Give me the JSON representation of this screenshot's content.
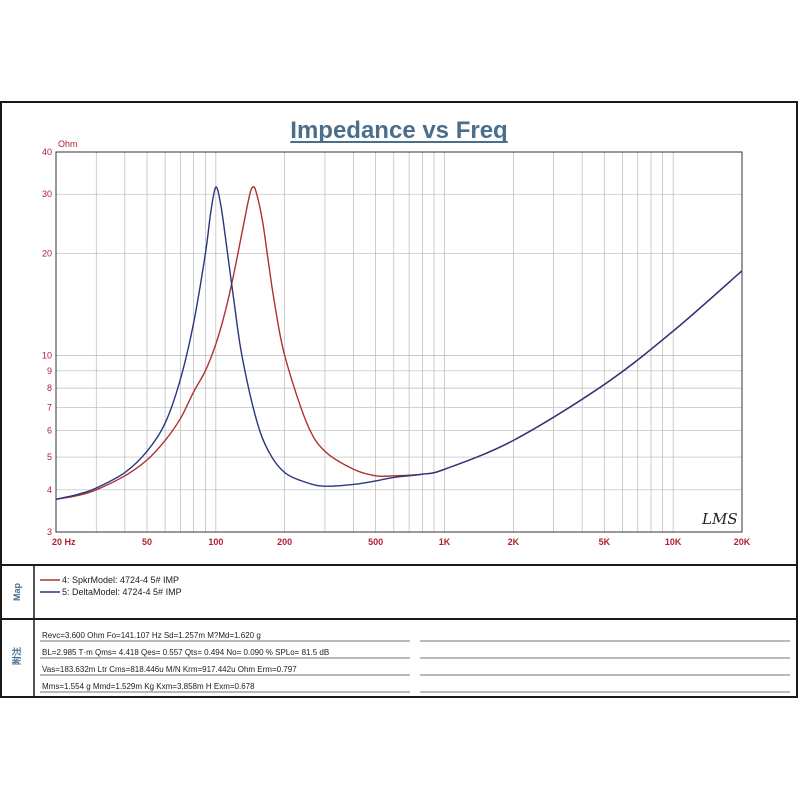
{
  "chart_data": {
    "type": "line",
    "title": "Impedance vs Freq",
    "ylabel": "Ohm",
    "xlabel": "",
    "x_scale": "log",
    "y_scale": "log",
    "xlim": [
      20,
      20000
    ],
    "ylim": [
      3,
      40
    ],
    "grid": true,
    "x_ticks": [
      {
        "value": 20,
        "label": "20  Hz"
      },
      {
        "value": 50,
        "label": "50"
      },
      {
        "value": 100,
        "label": "100"
      },
      {
        "value": 200,
        "label": "200"
      },
      {
        "value": 500,
        "label": "500"
      },
      {
        "value": 1000,
        "label": "1K"
      },
      {
        "value": 2000,
        "label": "2K"
      },
      {
        "value": 5000,
        "label": "5K"
      },
      {
        "value": 10000,
        "label": "10K"
      },
      {
        "value": 20000,
        "label": "20K"
      }
    ],
    "y_ticks": [
      {
        "value": 3,
        "label": "3"
      },
      {
        "value": 4,
        "label": "4"
      },
      {
        "value": 5,
        "label": "5"
      },
      {
        "value": 6,
        "label": "6"
      },
      {
        "value": 7,
        "label": "7"
      },
      {
        "value": 8,
        "label": "8"
      },
      {
        "value": 9,
        "label": "9"
      },
      {
        "value": 10,
        "label": "10"
      },
      {
        "value": 20,
        "label": "20"
      },
      {
        "value": 30,
        "label": "30"
      },
      {
        "value": 40,
        "label": "40"
      }
    ],
    "series": [
      {
        "name": "4: SpkrModel: 4724-4 5#  IMP",
        "color": "#b03030",
        "x": [
          20,
          25,
          30,
          40,
          50,
          60,
          70,
          80,
          90,
          100,
          110,
          120,
          130,
          140,
          145,
          150,
          160,
          170,
          180,
          200,
          250,
          300,
          400,
          500,
          600,
          800,
          1000,
          2000,
          5000,
          10000,
          20000
        ],
        "y": [
          3.75,
          3.85,
          4.0,
          4.4,
          4.9,
          5.6,
          6.5,
          7.8,
          9.0,
          10.8,
          13.5,
          17.5,
          23.0,
          29.5,
          31.5,
          30.5,
          25.0,
          18.8,
          14.5,
          10.0,
          6.3,
          5.2,
          4.6,
          4.4,
          4.4,
          4.45,
          4.6,
          5.6,
          8.2,
          11.8,
          17.8
        ]
      },
      {
        "name": "5: DeltaModel: 4724-4 5#  IMP",
        "color": "#2a3680",
        "x": [
          20,
          25,
          30,
          40,
          50,
          60,
          70,
          80,
          90,
          95,
          100,
          105,
          110,
          120,
          130,
          150,
          170,
          200,
          250,
          300,
          400,
          500,
          600,
          800,
          1000,
          2000,
          5000,
          10000,
          20000
        ],
        "y": [
          3.75,
          3.88,
          4.05,
          4.5,
          5.2,
          6.3,
          8.5,
          12.5,
          20.0,
          26.5,
          31.5,
          28.0,
          22.5,
          14.5,
          10.0,
          6.5,
          5.2,
          4.5,
          4.2,
          4.1,
          4.15,
          4.25,
          4.35,
          4.45,
          4.6,
          5.6,
          8.2,
          11.8,
          17.8
        ]
      }
    ]
  },
  "side_labels": {
    "map": "Map",
    "notes": "附注"
  },
  "watermark": "LMS",
  "parameters": [
    "Revc=3.600 Ohm  Fo=141.107 Hz  Sd=1.257m M?Md=1.620 g",
    "BL=2.985 T·m  Qms= 4.418  Qes= 0.557  Qts= 0.494  No= 0.090 %  SPLo= 81.5 dB",
    "Vas=183.632m Ltr  Cms=818.446u M/N  Krm=917.442u Ohm  Erm=0.797",
    "Mms=1.554 g  Mmd=1.529m Kg  Kxm=3.858m H  Exm=0.678"
  ],
  "colors": {
    "title": "#4a6f8c",
    "tick_label": "#b02030",
    "grid": "#b8b8b8",
    "frame": "#1a1a1a"
  }
}
